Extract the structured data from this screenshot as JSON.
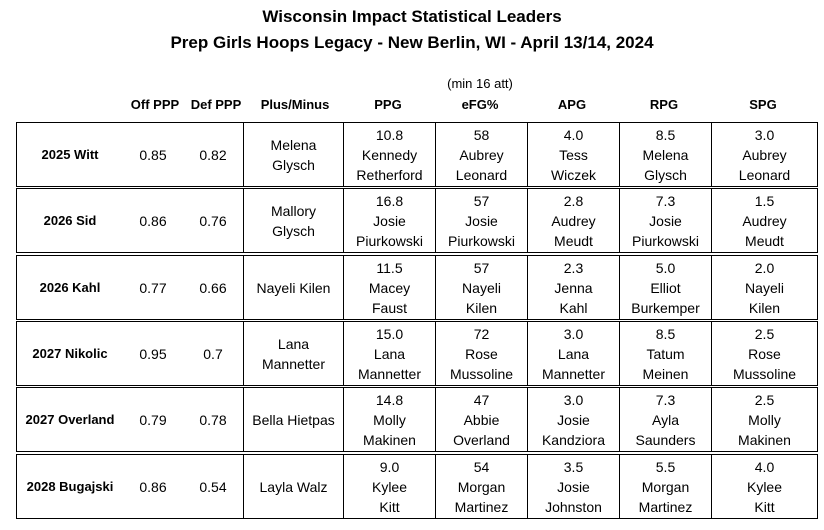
{
  "title": "Wisconsin Impact Statistical Leaders",
  "subtitle": "Prep Girls Hoops Legacy - New Berlin, WI - April 13/14, 2024",
  "efg_note": "(min 16 att)",
  "headers": {
    "off_ppp": "Off PPP",
    "def_ppp": "Def PPP",
    "plus_minus": "Plus/Minus",
    "ppg": "PPG",
    "efg": "eFG%",
    "apg": "APG",
    "rpg": "RPG",
    "spg": "SPG"
  },
  "rows": [
    {
      "team": "2025 Witt",
      "off_ppp": "0.85",
      "def_ppp": "0.82",
      "plus_minus": [
        "Melena",
        "Glysch"
      ],
      "ppg": [
        "10.8",
        "Kennedy",
        "Retherford"
      ],
      "efg": [
        "58",
        "Aubrey",
        "Leonard"
      ],
      "apg": [
        "4.0",
        "Tess",
        "Wiczek"
      ],
      "rpg": [
        "8.5",
        "Melena",
        "Glysch"
      ],
      "spg": [
        "3.0",
        "Aubrey",
        "Leonard"
      ]
    },
    {
      "team": "2026 Sid",
      "off_ppp": "0.86",
      "def_ppp": "0.76",
      "plus_minus": [
        "Mallory",
        "Glysch"
      ],
      "ppg": [
        "16.8",
        "Josie",
        "Piurkowski"
      ],
      "efg": [
        "57",
        "Josie",
        "Piurkowski"
      ],
      "apg": [
        "2.8",
        "Audrey",
        "Meudt"
      ],
      "rpg": [
        "7.3",
        "Josie",
        "Piurkowski"
      ],
      "spg": [
        "1.5",
        "Audrey",
        "Meudt"
      ]
    },
    {
      "team": "2026 Kahl",
      "off_ppp": "0.77",
      "def_ppp": "0.66",
      "plus_minus": [
        "Nayeli Kilen"
      ],
      "ppg": [
        "11.5",
        "Macey",
        "Faust"
      ],
      "efg": [
        "57",
        "Nayeli",
        "Kilen"
      ],
      "apg": [
        "2.3",
        "Jenna",
        "Kahl"
      ],
      "rpg": [
        "5.0",
        "Elliot",
        "Burkemper"
      ],
      "spg": [
        "2.0",
        "Nayeli",
        "Kilen"
      ]
    },
    {
      "team": "2027 Nikolic",
      "off_ppp": "0.95",
      "def_ppp": "0.7",
      "plus_minus": [
        "Lana",
        "Mannetter"
      ],
      "ppg": [
        "15.0",
        "Lana",
        "Mannetter"
      ],
      "efg": [
        "72",
        "Rose",
        "Mussoline"
      ],
      "apg": [
        "3.0",
        "Lana",
        "Mannetter"
      ],
      "rpg": [
        "8.5",
        "Tatum",
        "Meinen"
      ],
      "spg": [
        "2.5",
        "Rose",
        "Mussoline"
      ]
    },
    {
      "team": "2027 Overland",
      "off_ppp": "0.79",
      "def_ppp": "0.78",
      "plus_minus": [
        "Bella Hietpas"
      ],
      "ppg": [
        "14.8",
        "Molly",
        "Makinen"
      ],
      "efg": [
        "47",
        "Abbie",
        "Overland"
      ],
      "apg": [
        "3.0",
        "Josie",
        "Kandziora"
      ],
      "rpg": [
        "7.3",
        "Ayla",
        "Saunders"
      ],
      "spg": [
        "2.5",
        "Molly",
        "Makinen"
      ]
    },
    {
      "team": "2028 Bugajski",
      "off_ppp": "0.86",
      "def_ppp": "0.54",
      "plus_minus": [
        "Layla Walz"
      ],
      "ppg": [
        "9.0",
        "Kylee",
        "Kitt"
      ],
      "efg": [
        "54",
        "Morgan",
        "Martinez"
      ],
      "apg": [
        "3.5",
        "Josie",
        "Johnston"
      ],
      "rpg": [
        "5.5",
        "Morgan",
        "Martinez"
      ],
      "spg": [
        "4.0",
        "Kylee",
        "Kitt"
      ]
    }
  ]
}
